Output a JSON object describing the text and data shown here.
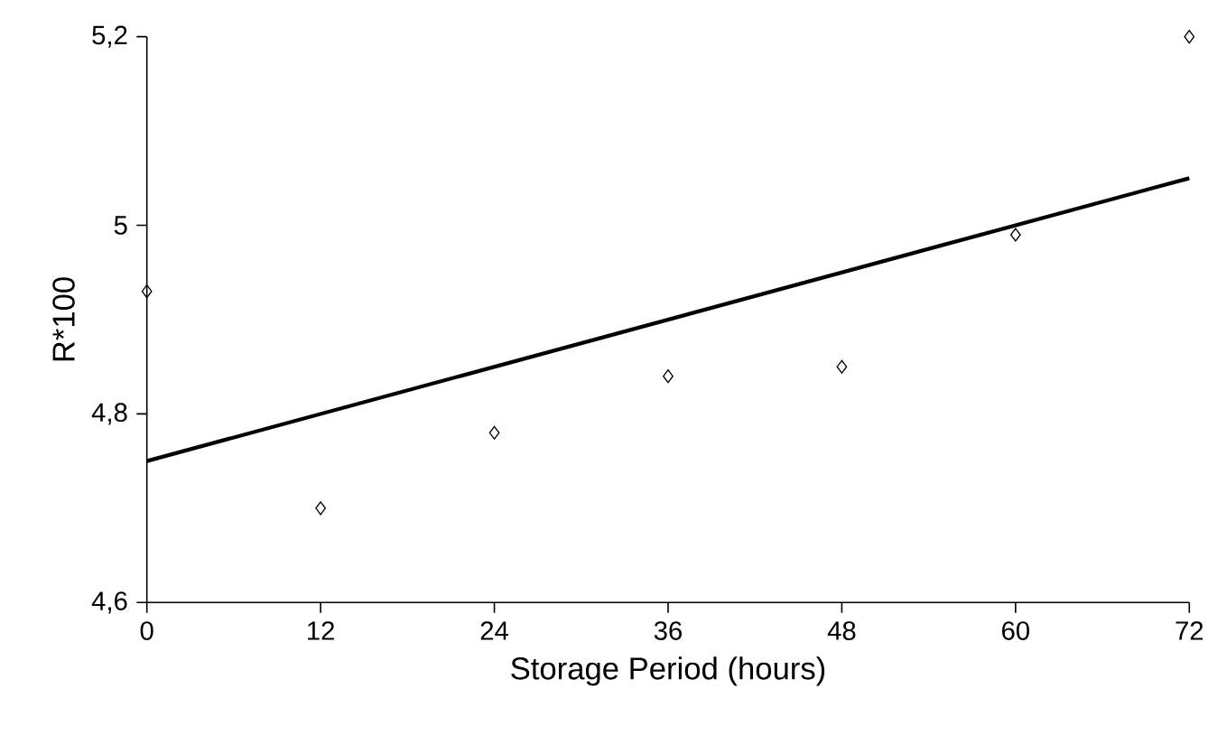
{
  "chart_data": {
    "type": "scatter",
    "xlabel": "Storage Period (hours)",
    "ylabel": "R*100",
    "xlim": [
      0,
      72
    ],
    "ylim": [
      4.6,
      5.2
    ],
    "xticks": [
      0,
      12,
      24,
      36,
      48,
      60,
      72
    ],
    "yticks": [
      {
        "value": 4.6,
        "label": "4,6"
      },
      {
        "value": 4.8,
        "label": "4,8"
      },
      {
        "value": 5,
        "label": "5"
      },
      {
        "value": 5.2,
        "label": "5,2"
      }
    ],
    "grid": false,
    "series": [
      {
        "color": "#000000",
        "marker": "diamond",
        "x": [
          0,
          12,
          24,
          36,
          48,
          60,
          72
        ],
        "values": [
          4.93,
          4.7,
          4.78,
          4.84,
          4.85,
          4.99,
          5.2
        ]
      },
      {
        "type": "line",
        "color": "#000000",
        "marker": "none",
        "line_style": "solid",
        "x": [
          0,
          72
        ],
        "values": [
          4.75,
          5.05
        ]
      }
    ]
  }
}
